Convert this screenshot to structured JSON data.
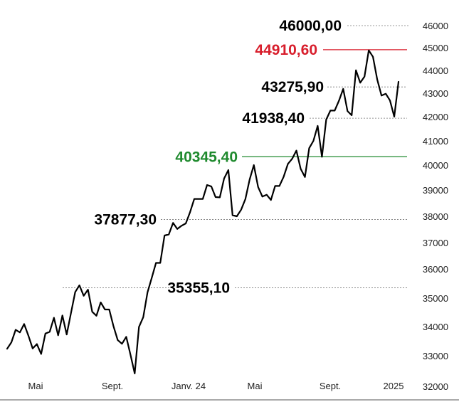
{
  "chart_data": {
    "type": "line",
    "title": "",
    "xlabel": "",
    "ylabel": "",
    "ylim": [
      32000,
      46000
    ],
    "yticks": [
      32000,
      33000,
      34000,
      35000,
      36000,
      37000,
      38000,
      39000,
      40000,
      41000,
      42000,
      43000,
      44000,
      45000,
      46000
    ],
    "xticks": [
      "Mai",
      "Sept.",
      "Janv. 24",
      "Mai",
      "Sept.",
      "2025"
    ],
    "grid": false,
    "legend": "none",
    "series": [
      {
        "color": "#000000",
        "values": [
          33240,
          33460,
          33890,
          33800,
          34090,
          33690,
          33250,
          33400,
          33060,
          33760,
          33820,
          34310,
          33700,
          34390,
          33730,
          34470,
          35210,
          35440,
          35080,
          35290,
          34520,
          34380,
          34850,
          34600,
          34600,
          34010,
          33540,
          33410,
          33650,
          33030,
          32420,
          33990,
          34330,
          35200,
          35700,
          36230,
          36230,
          37270,
          37310,
          37750,
          37520,
          37640,
          37730,
          38160,
          38660,
          38660,
          38660,
          39200,
          39140,
          38730,
          38720,
          39460,
          39800,
          38040,
          38000,
          38250,
          38650,
          39420,
          40000,
          39120,
          38750,
          38820,
          38620,
          39160,
          39160,
          39530,
          40050,
          40260,
          40600,
          39850,
          39520,
          40700,
          41000,
          41620,
          40340,
          41880,
          42260,
          42260,
          42680,
          43190,
          42240,
          42060,
          44010,
          43460,
          43730,
          44880,
          44600,
          43600,
          42900,
          42980,
          42690,
          42000,
          43500
        ]
      }
    ],
    "reference_lines": [
      {
        "value": 46000,
        "label": "46000,00",
        "color": "#000000",
        "style": "dotted"
      },
      {
        "value": 44910.6,
        "label": "44910,60",
        "color": "#d81e2c",
        "style": "solid"
      },
      {
        "value": 43275.9,
        "label": "43275,90",
        "color": "#000000",
        "style": "dotted"
      },
      {
        "value": 41938.4,
        "label": "41938,40",
        "color": "#000000",
        "style": "dotted"
      },
      {
        "value": 40345.4,
        "label": "40345,40",
        "color": "#1f8a2e",
        "style": "solid"
      },
      {
        "value": 37877.3,
        "label": "37877,30",
        "color": "#000000",
        "style": "dotted"
      },
      {
        "value": 35355.1,
        "label": "35355,10",
        "color": "#000000",
        "style": "dotted"
      }
    ]
  }
}
